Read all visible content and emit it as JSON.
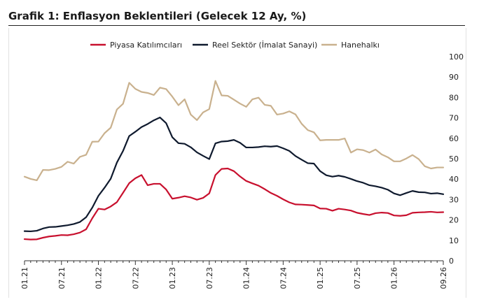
{
  "header": {
    "title": "Grafik 1: Enflasyon Beklentileri (Gelecek 12 Ay, %)"
  },
  "chart_data": {
    "type": "line",
    "title": "Grafik 1: Enflasyon Beklentileri (Gelecek 12 Ay, %)",
    "xlabel": "",
    "ylabel": "",
    "ylim": [
      0,
      100
    ],
    "yticks": [
      0,
      10,
      20,
      30,
      40,
      50,
      60,
      70,
      80,
      90,
      100
    ],
    "y_axis_side": "right",
    "grid": false,
    "legend_position": "top",
    "x_range": [
      "01.21",
      "09.26"
    ],
    "xtick_labels": [
      "01.21",
      "07.21",
      "01.22",
      "07.22",
      "01.23",
      "07.23",
      "01.24",
      "07.24",
      "01.25",
      "07.25",
      "01.26",
      "09.26"
    ],
    "x_months": [
      "01.21",
      "02.21",
      "03.21",
      "04.21",
      "05.21",
      "06.21",
      "07.21",
      "08.21",
      "09.21",
      "10.21",
      "11.21",
      "12.21",
      "01.22",
      "02.22",
      "03.22",
      "04.22",
      "05.22",
      "06.22",
      "07.22",
      "08.22",
      "09.22",
      "10.22",
      "11.22",
      "12.22",
      "01.23",
      "02.23",
      "03.23",
      "04.23",
      "05.23",
      "06.23",
      "07.23",
      "08.23",
      "09.23",
      "10.23",
      "11.23",
      "12.23",
      "01.24",
      "02.24",
      "03.24",
      "04.24",
      "05.24",
      "06.24",
      "07.24",
      "08.24",
      "09.24",
      "10.24",
      "11.24",
      "12.24",
      "01.25",
      "02.25",
      "03.25",
      "04.25",
      "05.25",
      "06.25",
      "07.25",
      "08.25",
      "09.25",
      "10.25",
      "11.25",
      "12.25",
      "01.26",
      "02.26",
      "03.26",
      "04.26",
      "05.26",
      "06.26",
      "07.26",
      "08.26",
      "09.26"
    ],
    "series": [
      {
        "name": "Piyasa Katılımcıları",
        "color": "#c8102e",
        "values": [
          10.6,
          10.4,
          10.5,
          11.3,
          11.9,
          12.2,
          12.6,
          12.5,
          13.0,
          13.8,
          15.4,
          20.8,
          25.5,
          25.1,
          26.6,
          28.7,
          33.3,
          38.0,
          40.4,
          42.0,
          37.0,
          37.7,
          37.7,
          34.9,
          30.4,
          30.9,
          31.6,
          31.0,
          29.9,
          30.8,
          33.0,
          42.0,
          45.0,
          45.2,
          43.9,
          41.3,
          39.1,
          37.9,
          36.8,
          35.1,
          33.2,
          31.8,
          30.1,
          28.6,
          27.6,
          27.5,
          27.3,
          27.1,
          25.6,
          25.5,
          24.5,
          25.5,
          25.1,
          24.6,
          23.5,
          22.9,
          22.4,
          23.3,
          23.6,
          23.4,
          22.2,
          22.0,
          22.3,
          23.5,
          23.7,
          23.8,
          24.0,
          23.7,
          23.8
        ]
      },
      {
        "name": "Reel Sektör (İmalat Sanayi)",
        "color": "#0f1a2e",
        "values": [
          14.5,
          14.4,
          14.7,
          15.8,
          16.5,
          16.6,
          17.0,
          17.4,
          18.0,
          19.0,
          21.3,
          26.0,
          31.8,
          35.8,
          40.2,
          48.1,
          53.8,
          61.1,
          63.2,
          65.5,
          67.0,
          68.8,
          70.2,
          67.4,
          60.5,
          57.6,
          57.3,
          55.6,
          53.1,
          51.4,
          49.8,
          57.5,
          58.4,
          58.6,
          59.2,
          57.8,
          55.5,
          55.5,
          55.7,
          56.1,
          55.9,
          56.2,
          55.1,
          53.8,
          51.3,
          49.5,
          47.8,
          47.6,
          43.9,
          41.9,
          41.2,
          41.7,
          41.1,
          40.1,
          39.0,
          38.2,
          37.0,
          36.5,
          35.8,
          34.8,
          33.0,
          32.1,
          33.2,
          34.2,
          33.6,
          33.5,
          32.9,
          33.1,
          32.6
        ]
      },
      {
        "name": "Hanehalkı",
        "color": "#c9b18e",
        "values": [
          41.2,
          40.1,
          39.4,
          44.5,
          44.4,
          45.0,
          46.0,
          48.5,
          47.6,
          50.9,
          51.9,
          58.3,
          58.4,
          62.5,
          65.2,
          74.1,
          76.9,
          87.2,
          84.2,
          82.7,
          82.2,
          81.2,
          84.8,
          84.1,
          80.4,
          76.2,
          79.1,
          71.6,
          68.9,
          72.7,
          74.3,
          88.1,
          81.0,
          80.8,
          78.9,
          77.0,
          75.4,
          79.1,
          79.9,
          76.4,
          75.9,
          71.6,
          72.1,
          73.2,
          71.7,
          67.1,
          64.0,
          62.9,
          59.0,
          59.2,
          59.2,
          59.2,
          59.9,
          53.0,
          54.6,
          54.2,
          53.0,
          54.5,
          52.1,
          50.7,
          48.7,
          48.7,
          50.1,
          51.8,
          49.8,
          46.3,
          45.2,
          45.7,
          45.7
        ]
      }
    ]
  }
}
